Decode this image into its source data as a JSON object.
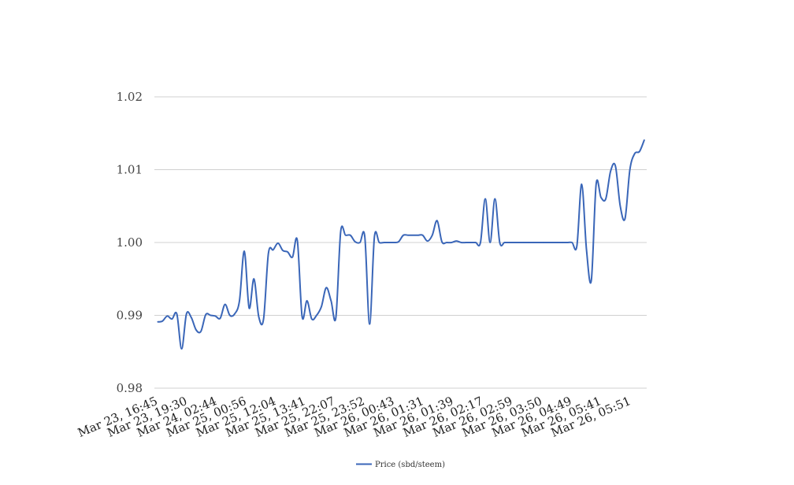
{
  "chart_data": {
    "type": "line",
    "title": "",
    "xlabel": "",
    "ylabel": "",
    "ylim": [
      0.98,
      1.02
    ],
    "y_ticks": [
      "0.98",
      "0.99",
      "1.00",
      "1.01",
      "1.02"
    ],
    "grid": true,
    "legend_position": "bottom",
    "x_tick_labels": [
      "Mar 23, 16:45",
      "Mar 23, 19:30",
      "Mar 24, 02:44",
      "Mar 25, 00:56",
      "Mar 25, 12:04",
      "Mar 25, 13:41",
      "Mar 25, 22:07",
      "Mar 25, 23:52",
      "Mar 26, 00:43",
      "Mar 26, 01:31",
      "Mar 26, 01:39",
      "Mar 26, 02:17",
      "Mar 26, 02:59",
      "Mar 26, 03:50",
      "Mar 26, 04:49",
      "Mar 26, 05:41",
      "Mar 26, 05:51"
    ],
    "series": [
      {
        "name": "Price (sbd/steem)",
        "color": "#3a66b8",
        "values": [
          0.9891,
          0.9892,
          0.9899,
          0.9895,
          0.9902,
          0.9854,
          0.9902,
          0.9897,
          0.988,
          0.9878,
          0.9901,
          0.99,
          0.9899,
          0.9896,
          0.9915,
          0.99,
          0.9902,
          0.992,
          0.9988,
          0.991,
          0.995,
          0.9898,
          0.9895,
          0.9985,
          0.999,
          0.9999,
          0.9989,
          0.9987,
          0.998,
          1.0003,
          0.9898,
          0.992,
          0.9895,
          0.99,
          0.9912,
          0.9938,
          0.992,
          0.9897,
          1.0015,
          1.001,
          1.001,
          1.0001,
          1.0,
          1.0008,
          0.9888,
          1.0008,
          1.0,
          1.0,
          1.0,
          1.0,
          1.0001,
          1.001,
          1.001,
          1.001,
          1.001,
          1.001,
          1.0002,
          1.001,
          1.003,
          1.0001,
          1.0,
          1.0,
          1.0002,
          1.0,
          1.0,
          1.0,
          1.0,
          1.0,
          1.006,
          1.0,
          1.006,
          1.0,
          1.0,
          1.0,
          1.0,
          1.0,
          1.0,
          1.0,
          1.0,
          1.0,
          1.0,
          1.0,
          1.0,
          1.0,
          1.0,
          1.0,
          1.0,
          0.9995,
          1.008,
          0.999,
          0.9948,
          1.008,
          1.0062,
          1.006,
          1.0098,
          1.0105,
          1.005,
          1.0033,
          1.01,
          1.0122,
          1.0125,
          1.0141
        ]
      }
    ]
  }
}
